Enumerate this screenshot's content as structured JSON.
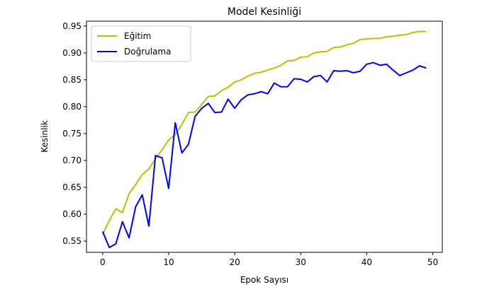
{
  "chart_data": {
    "type": "line",
    "title": "Model Kesinliği",
    "xlabel": "Epok Sayısı",
    "ylabel": "Kesinlik",
    "xlim": [
      -2.45,
      51.45
    ],
    "ylim": [
      0.529,
      0.959
    ],
    "xticks": [
      0,
      10,
      20,
      30,
      40,
      50
    ],
    "yticks": [
      0.55,
      0.6,
      0.65,
      0.7,
      0.75,
      0.8,
      0.85,
      0.9,
      0.95
    ],
    "ytick_labels": [
      "0.55",
      "0.60",
      "0.65",
      "0.70",
      "0.75",
      "0.80",
      "0.85",
      "0.90",
      "0.95"
    ],
    "legend_position": "top-left",
    "grid": false,
    "x": [
      0,
      1,
      2,
      3,
      4,
      5,
      6,
      7,
      8,
      9,
      10,
      11,
      12,
      13,
      14,
      15,
      16,
      17,
      18,
      19,
      20,
      21,
      22,
      23,
      24,
      25,
      26,
      27,
      28,
      29,
      30,
      31,
      32,
      33,
      34,
      35,
      36,
      37,
      38,
      39,
      40,
      41,
      42,
      43,
      44,
      45,
      46,
      47,
      48,
      49
    ],
    "series": [
      {
        "name": "Eğitim",
        "color": "#bfbf00",
        "values": [
          0.562,
          0.588,
          0.61,
          0.603,
          0.638,
          0.655,
          0.674,
          0.684,
          0.703,
          0.72,
          0.738,
          0.748,
          0.767,
          0.789,
          0.79,
          0.804,
          0.819,
          0.82,
          0.83,
          0.836,
          0.846,
          0.85,
          0.857,
          0.862,
          0.864,
          0.868,
          0.872,
          0.877,
          0.885,
          0.886,
          0.892,
          0.893,
          0.9,
          0.902,
          0.903,
          0.91,
          0.911,
          0.915,
          0.918,
          0.925,
          0.926,
          0.927,
          0.927,
          0.93,
          0.931,
          0.933,
          0.934,
          0.938,
          0.94,
          0.94
        ]
      },
      {
        "name": "Doğrulama",
        "color": "#0000ff",
        "values": [
          0.568,
          0.538,
          0.545,
          0.586,
          0.556,
          0.614,
          0.636,
          0.578,
          0.709,
          0.705,
          0.648,
          0.77,
          0.714,
          0.73,
          0.782,
          0.797,
          0.806,
          0.789,
          0.79,
          0.814,
          0.797,
          0.813,
          0.822,
          0.824,
          0.828,
          0.824,
          0.844,
          0.837,
          0.837,
          0.852,
          0.851,
          0.846,
          0.856,
          0.858,
          0.846,
          0.867,
          0.866,
          0.867,
          0.863,
          0.866,
          0.879,
          0.882,
          0.877,
          0.879,
          0.868,
          0.858,
          0.863,
          0.868,
          0.876,
          0.872
        ]
      }
    ]
  }
}
